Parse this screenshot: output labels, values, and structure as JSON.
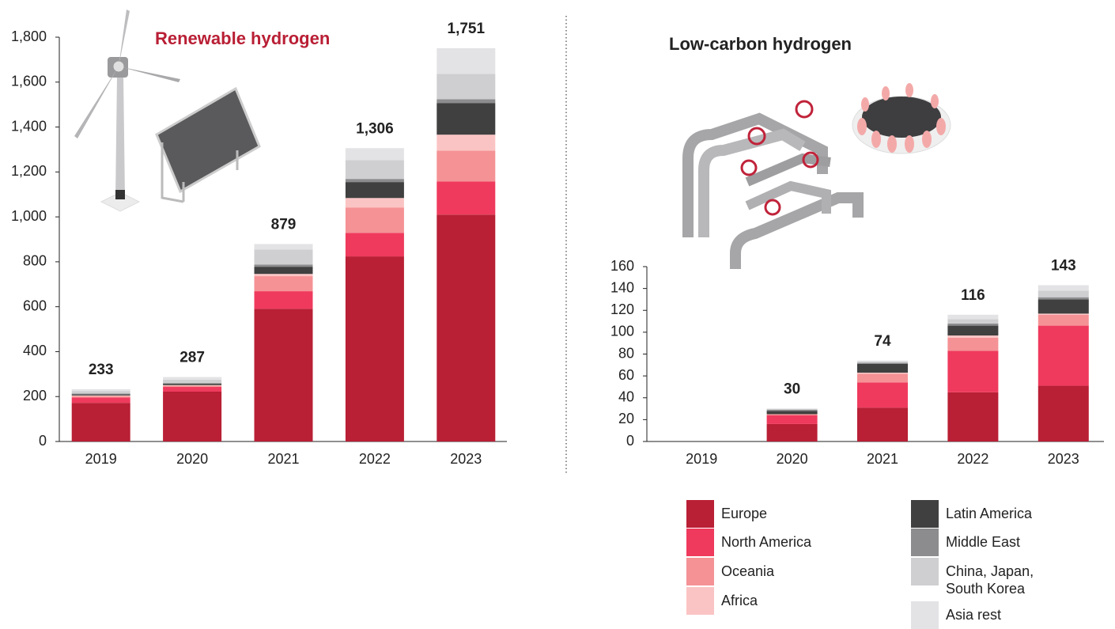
{
  "chart_data": [
    {
      "type": "bar",
      "stacked": true,
      "title": "Renewable hydrogen",
      "categories": [
        "2019",
        "2020",
        "2021",
        "2022",
        "2023"
      ],
      "ylim": [
        0,
        1800
      ],
      "yticks": [
        0,
        200,
        400,
        600,
        800,
        {
          "value": 1000,
          "label": "1,000"
        },
        {
          "value": 1200,
          "label": "1,200"
        },
        {
          "value": 1400,
          "label": "1,400"
        },
        {
          "value": 1600,
          "label": "1,600"
        },
        {
          "value": 1800,
          "label": "1,800"
        }
      ],
      "totals": [
        233,
        287,
        879,
        1306,
        1751
      ],
      "total_labels": [
        "233",
        "287",
        "879",
        "1,306",
        "1,751"
      ],
      "series": [
        {
          "name": "Europe",
          "color": "#b91f35",
          "values": [
            172,
            222,
            591,
            824,
            1010
          ]
        },
        {
          "name": "North America",
          "color": "#ef3a5d",
          "values": [
            24,
            21,
            78,
            105,
            148
          ]
        },
        {
          "name": "Oceania",
          "color": "#f59295",
          "values": [
            6,
            5,
            67,
            113,
            137
          ]
        },
        {
          "name": "Africa",
          "color": "#fbc4c4",
          "values": [
            3,
            3,
            10,
            42,
            71
          ]
        },
        {
          "name": "Latin America",
          "color": "#404040",
          "values": [
            5,
            6,
            32,
            71,
            141
          ]
        },
        {
          "name": "Middle East",
          "color": "#8c8c8e",
          "values": [
            3,
            3,
            10,
            14,
            17
          ]
        },
        {
          "name": "China, Japan, South Korea",
          "color": "#cfcfd1",
          "values": [
            12,
            15,
            67,
            84,
            113
          ]
        },
        {
          "name": "Asia rest",
          "color": "#e3e3e5",
          "values": [
            8,
            12,
            24,
            53,
            114
          ]
        }
      ]
    },
    {
      "type": "bar",
      "stacked": true,
      "title": "Low-carbon hydrogen",
      "categories": [
        "2019",
        "2020",
        "2021",
        "2022",
        "2023"
      ],
      "ylim": [
        0,
        160
      ],
      "yticks": [
        0,
        20,
        40,
        60,
        80,
        100,
        120,
        140,
        160
      ],
      "totals": [
        null,
        30,
        74,
        116,
        143
      ],
      "series": [
        {
          "color": "#b91f35",
          "values": [
            0,
            16,
            31,
            45,
            51
          ]
        },
        {
          "color": "#ef3a5d",
          "values": [
            0,
            8,
            23,
            38,
            55
          ]
        },
        {
          "color": "#f59295",
          "values": [
            0,
            1,
            8,
            12,
            10
          ]
        },
        {
          "color": "#fbc4c4",
          "values": [
            0,
            0,
            1,
            2,
            1
          ]
        },
        {
          "color": "#404040",
          "values": [
            0,
            3,
            8,
            9,
            13
          ]
        },
        {
          "color": "#8c8c8e",
          "values": [
            0,
            1,
            1,
            2,
            2
          ]
        },
        {
          "color": "#cfcfd1",
          "values": [
            0,
            1,
            1,
            4,
            6
          ]
        },
        {
          "color": "#e3e3e5",
          "values": [
            0,
            0,
            1,
            4,
            5
          ]
        }
      ]
    }
  ]
}
